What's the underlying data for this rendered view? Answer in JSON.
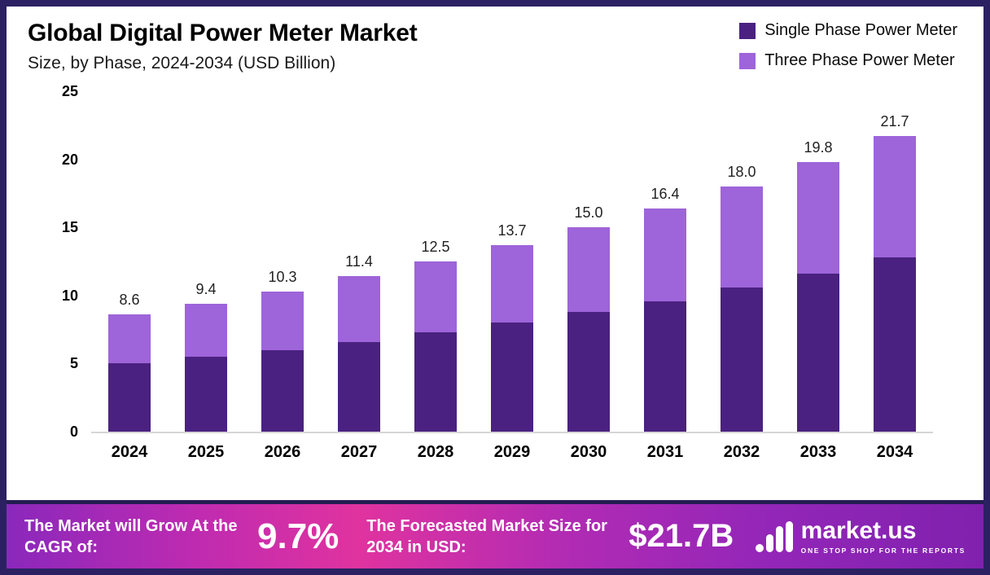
{
  "header": {
    "title": "Global Digital Power Meter Market",
    "subtitle": "Size, by Phase, 2024-2034 (USD Billion)"
  },
  "legend": [
    {
      "label": "Single Phase Power Meter",
      "color": "#4a2180"
    },
    {
      "label": "Three Phase Power Meter",
      "color": "#9e64d9"
    }
  ],
  "chart_data": {
    "type": "bar",
    "stacked": true,
    "title": "Global Digital Power Meter Market Size, by Phase, 2024-2034 (USD Billion)",
    "categories": [
      "2024",
      "2025",
      "2026",
      "2027",
      "2028",
      "2029",
      "2030",
      "2031",
      "2032",
      "2033",
      "2034"
    ],
    "series": [
      {
        "name": "Single Phase Power Meter",
        "color": "#4a2180",
        "values": [
          5.0,
          5.5,
          6.0,
          6.6,
          7.3,
          8.0,
          8.8,
          9.6,
          10.6,
          11.6,
          12.8
        ]
      },
      {
        "name": "Three Phase Power Meter",
        "color": "#9e64d9",
        "values": [
          3.6,
          3.9,
          4.3,
          4.8,
          5.2,
          5.7,
          6.2,
          6.8,
          7.4,
          8.2,
          8.9
        ]
      }
    ],
    "totals": [
      "8.6",
      "9.4",
      "10.3",
      "11.4",
      "12.5",
      "13.7",
      "15.0",
      "16.4",
      "18.0",
      "19.8",
      "21.7"
    ],
    "xlabel": "",
    "ylabel": "",
    "ylim": [
      0,
      25
    ],
    "yticks": [
      0,
      5,
      10,
      15,
      20,
      25
    ],
    "grid": false,
    "legend_position": "top-right"
  },
  "footer": {
    "cagr_label": "The Market will Grow At the CAGR of:",
    "cagr_value": "9.7%",
    "forecast_label": "The Forecasted Market Size for 2034 in USD:",
    "forecast_value": "$21.7B",
    "brand": "market.us",
    "brand_tagline": "ONE STOP SHOP FOR THE REPORTS"
  }
}
